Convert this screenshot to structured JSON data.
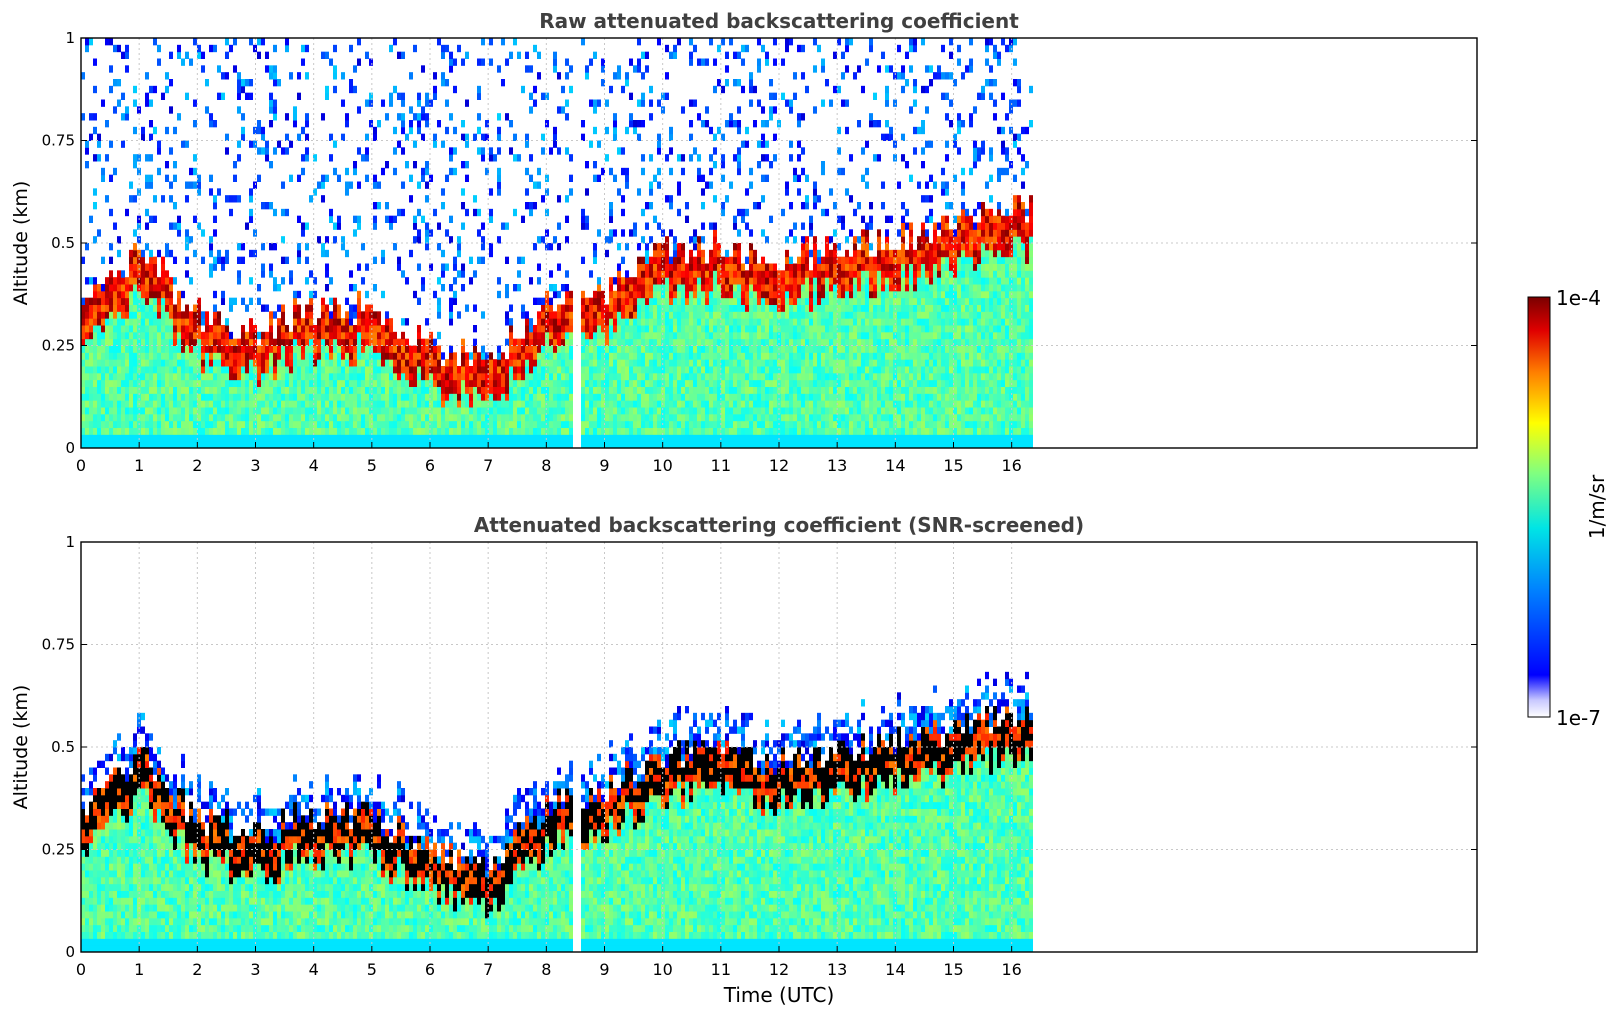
{
  "figure": {
    "colorbar": {
      "label": "1/m/sr",
      "max_label": "1e-4",
      "min_label": "1e-7"
    },
    "xlabel": "Time (UTC)"
  },
  "chart_data": [
    {
      "type": "heatmap",
      "title": "Raw attenuated backscattering coefficient",
      "xlabel": "",
      "ylabel": "Altitude (km)",
      "xlim": [
        0,
        24
      ],
      "ylim": [
        0,
        1
      ],
      "xticks": [
        "0",
        "1",
        "2",
        "3",
        "4",
        "5",
        "6",
        "7",
        "8",
        "9",
        "10",
        "11",
        "12",
        "13",
        "14",
        "15",
        "16"
      ],
      "yticks": [
        "0",
        "0.25",
        "0.5",
        "0.75",
        "1"
      ],
      "data_extent_hours": [
        0,
        16.3
      ],
      "colorscale": "jet-like, log from 1e-7 to 1e-4",
      "grid": true,
      "aerosol_layer_top_km": [
        [
          0,
          0.3
        ],
        [
          1,
          0.45
        ],
        [
          2,
          0.28
        ],
        [
          3,
          0.25
        ],
        [
          4,
          0.3
        ],
        [
          5,
          0.3
        ],
        [
          6,
          0.2
        ],
        [
          7,
          0.18
        ],
        [
          8,
          0.32
        ],
        [
          9,
          0.35
        ],
        [
          10,
          0.45
        ],
        [
          11,
          0.45
        ],
        [
          12,
          0.42
        ],
        [
          13,
          0.45
        ],
        [
          14,
          0.48
        ],
        [
          15,
          0.5
        ],
        [
          16,
          0.55
        ]
      ]
    },
    {
      "type": "heatmap",
      "title": "Attenuated backscattering coefficient (SNR-screened)",
      "xlabel": "Time (UTC)",
      "ylabel": "Altitude (km)",
      "xlim": [
        0,
        24
      ],
      "ylim": [
        0,
        1
      ],
      "xticks": [
        "0",
        "1",
        "2",
        "3",
        "4",
        "5",
        "6",
        "7",
        "8",
        "9",
        "10",
        "11",
        "12",
        "13",
        "14",
        "15",
        "16"
      ],
      "yticks": [
        "0",
        "0.25",
        "0.5",
        "0.75",
        "1"
      ],
      "data_extent_hours": [
        0,
        16.3
      ],
      "colorscale": "jet-like, log from 1e-7 to 1e-4",
      "grid": true
    }
  ]
}
